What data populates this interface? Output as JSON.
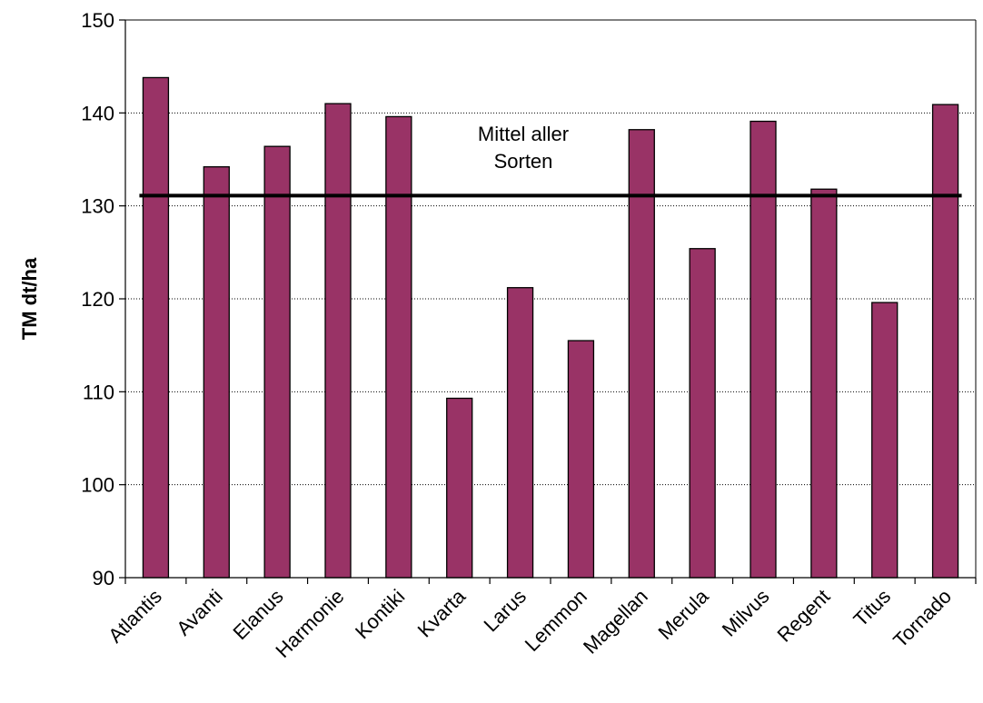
{
  "chart_data": {
    "type": "bar",
    "title": "",
    "xlabel": "",
    "ylabel": "TM dt/ha",
    "ylim": [
      90,
      150
    ],
    "yticks": [
      90,
      100,
      110,
      120,
      130,
      140,
      150
    ],
    "grid": "horizontal dotted",
    "bar_color": "#993366",
    "categories": [
      "Atlantis",
      "Avanti",
      "Elanus",
      "Harmonie",
      "Kontiki",
      "Kvarta",
      "Larus",
      "Lemmon",
      "Magellan",
      "Merula",
      "Milvus",
      "Regent",
      "Titus",
      "Tornado"
    ],
    "values": [
      143.8,
      134.2,
      136.4,
      141.0,
      139.6,
      109.3,
      121.2,
      115.5,
      138.2,
      125.4,
      139.1,
      131.8,
      119.6,
      140.9
    ],
    "reference_line": {
      "value": 131.1,
      "label_lines": [
        "Mittel aller",
        "Sorten"
      ]
    }
  }
}
